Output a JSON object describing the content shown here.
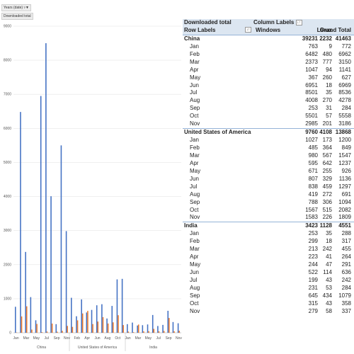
{
  "chart_buttons": {
    "years_filter": "Years (date)",
    "years_filter_icon": "filter-icon",
    "value_field": "Downloaded total"
  },
  "pivot": {
    "header1": {
      "values_label": "Downloaded total",
      "column_labels": "Column Labels",
      "sort_icon": "sort-icon"
    },
    "header2": {
      "row_labels": "Row Labels",
      "windows": "Windows",
      "linux": "Linux",
      "grand_total": "Grand Total",
      "sort_icon": "sort-icon"
    },
    "groups": [
      {
        "name": "China",
        "windows": "39231",
        "linux": "2232",
        "total": "41463",
        "months": [
          {
            "m": "Jan",
            "w": "763",
            "l": "9",
            "t": "772"
          },
          {
            "m": "Feb",
            "w": "6482",
            "l": "480",
            "t": "6962"
          },
          {
            "m": "Mar",
            "w": "2373",
            "l": "777",
            "t": "3150"
          },
          {
            "m": "Apr",
            "w": "1047",
            "l": "94",
            "t": "1141"
          },
          {
            "m": "May",
            "w": "367",
            "l": "260",
            "t": "627"
          },
          {
            "m": "Jun",
            "w": "6951",
            "l": "18",
            "t": "6969"
          },
          {
            "m": "Jul",
            "w": "8501",
            "l": "35",
            "t": "8536"
          },
          {
            "m": "Aug",
            "w": "4008",
            "l": "270",
            "t": "4278"
          },
          {
            "m": "Sep",
            "w": "253",
            "l": "31",
            "t": "284"
          },
          {
            "m": "Oct",
            "w": "5501",
            "l": "57",
            "t": "5558"
          },
          {
            "m": "Nov",
            "w": "2985",
            "l": "201",
            "t": "3186"
          }
        ]
      },
      {
        "name": "United States of America",
        "windows": "9760",
        "linux": "4108",
        "total": "13868",
        "months": [
          {
            "m": "Jan",
            "w": "1027",
            "l": "173",
            "t": "1200"
          },
          {
            "m": "Feb",
            "w": "485",
            "l": "364",
            "t": "849"
          },
          {
            "m": "Mar",
            "w": "980",
            "l": "567",
            "t": "1547"
          },
          {
            "m": "Apr",
            "w": "595",
            "l": "642",
            "t": "1237"
          },
          {
            "m": "May",
            "w": "671",
            "l": "255",
            "t": "926"
          },
          {
            "m": "Jun",
            "w": "807",
            "l": "329",
            "t": "1136"
          },
          {
            "m": "Jul",
            "w": "838",
            "l": "459",
            "t": "1297"
          },
          {
            "m": "Aug",
            "w": "419",
            "l": "272",
            "t": "691"
          },
          {
            "m": "Sep",
            "w": "788",
            "l": "306",
            "t": "1094"
          },
          {
            "m": "Oct",
            "w": "1567",
            "l": "515",
            "t": "2082"
          },
          {
            "m": "Nov",
            "w": "1583",
            "l": "226",
            "t": "1809"
          }
        ]
      },
      {
        "name": "India",
        "windows": "3423",
        "linux": "1128",
        "total": "4551",
        "months": [
          {
            "m": "Jan",
            "w": "253",
            "l": "35",
            "t": "288"
          },
          {
            "m": "Feb",
            "w": "299",
            "l": "18",
            "t": "317"
          },
          {
            "m": "Mar",
            "w": "213",
            "l": "242",
            "t": "455"
          },
          {
            "m": "Apr",
            "w": "223",
            "l": "41",
            "t": "264"
          },
          {
            "m": "May",
            "w": "244",
            "l": "47",
            "t": "291"
          },
          {
            "m": "Jun",
            "w": "522",
            "l": "114",
            "t": "636"
          },
          {
            "m": "Jul",
            "w": "199",
            "l": "43",
            "t": "242"
          },
          {
            "m": "Aug",
            "w": "231",
            "l": "53",
            "t": "284"
          },
          {
            "m": "Sep",
            "w": "645",
            "l": "434",
            "t": "1079"
          },
          {
            "m": "Oct",
            "w": "315",
            "l": "43",
            "t": "358"
          },
          {
            "m": "Nov",
            "w": "279",
            "l": "58",
            "t": "337"
          }
        ]
      }
    ]
  },
  "chart_data": {
    "type": "bar",
    "title": "",
    "xlabel": "",
    "ylabel": "",
    "ylim": [
      0,
      9000
    ],
    "yticks": [
      0,
      1000,
      2000,
      3000,
      4000,
      5000,
      6000,
      7000,
      8000,
      9000
    ],
    "grid": true,
    "legend": "none",
    "groups": [
      "China",
      "United States of America",
      "India"
    ],
    "categories": [
      "Jan",
      "Feb",
      "Mar",
      "Apr",
      "May",
      "Jun",
      "Jul",
      "Aug",
      "Sep",
      "Oct",
      "Nov"
    ],
    "x_tick_labels": [
      "Jan",
      "Mar",
      "May",
      "Jul",
      "Sep",
      "Nov",
      "Feb",
      "Apr",
      "Jun",
      "Aug",
      "Oct",
      "Jan",
      "Mar",
      "May",
      "Jul",
      "Sep",
      "Nov"
    ],
    "series": [
      {
        "name": "Windows",
        "color": "#4472c4",
        "values": [
          [
            763,
            6482,
            2373,
            1047,
            367,
            6951,
            8501,
            4008,
            253,
            5501,
            2985
          ],
          [
            1027,
            485,
            980,
            595,
            671,
            807,
            838,
            419,
            788,
            1567,
            1583
          ],
          [
            253,
            299,
            213,
            223,
            244,
            522,
            199,
            231,
            645,
            315,
            279
          ]
        ]
      },
      {
        "name": "Linux",
        "color": "#ed7d31",
        "values": [
          [
            9,
            480,
            777,
            94,
            260,
            18,
            35,
            270,
            31,
            57,
            201
          ],
          [
            173,
            364,
            567,
            642,
            255,
            329,
            459,
            272,
            306,
            515,
            226
          ],
          [
            35,
            18,
            242,
            41,
            47,
            114,
            43,
            53,
            434,
            43,
            58
          ]
        ]
      }
    ]
  }
}
